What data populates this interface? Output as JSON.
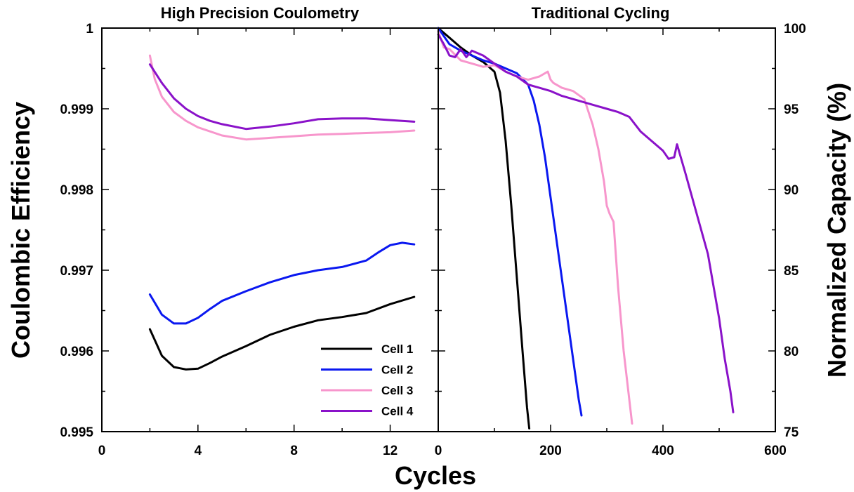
{
  "chart_data": [
    {
      "type": "line",
      "title": "High Precision Coulometry",
      "xlabel": "Cycles",
      "ylabel": "Coulombic Efficiency",
      "xlim": [
        0,
        14
      ],
      "ylim": [
        0.995,
        1.0
      ],
      "x_ticks": [
        "0",
        "4",
        "8",
        "12"
      ],
      "y_ticks": [
        "0.995",
        "0.996",
        "0.997",
        "0.998",
        "0.999",
        "1"
      ],
      "legend_position": "bottom-right",
      "series": [
        {
          "name": "Cell 1",
          "color": "#000000",
          "x": [
            2,
            2.5,
            3,
            3.5,
            4,
            4.5,
            5,
            6,
            7,
            8,
            9,
            10,
            11,
            12,
            13
          ],
          "y": [
            0.99627,
            0.99594,
            0.9958,
            0.99577,
            0.99578,
            0.99585,
            0.99593,
            0.99606,
            0.9962,
            0.9963,
            0.99638,
            0.99642,
            0.99647,
            0.99658,
            0.99667
          ]
        },
        {
          "name": "Cell 2",
          "color": "#0a18f0",
          "x": [
            2,
            2.5,
            3,
            3.5,
            4,
            4.5,
            5,
            6,
            7,
            8,
            9,
            10,
            11,
            11.5,
            12,
            12.5,
            13
          ],
          "y": [
            0.9967,
            0.99645,
            0.99634,
            0.99634,
            0.99641,
            0.99652,
            0.99662,
            0.99674,
            0.99685,
            0.99694,
            0.997,
            0.99704,
            0.99712,
            0.99722,
            0.99731,
            0.99734,
            0.99732
          ]
        },
        {
          "name": "Cell 3",
          "color": "#f796cc",
          "x": [
            2,
            2.2,
            2.5,
            3,
            3.5,
            4,
            5,
            6,
            7,
            8,
            9,
            10,
            11,
            12,
            13
          ],
          "y": [
            0.99966,
            0.99937,
            0.99915,
            0.99896,
            0.99885,
            0.99877,
            0.99867,
            0.99862,
            0.99864,
            0.99866,
            0.99868,
            0.99869,
            0.9987,
            0.99871,
            0.99873
          ]
        },
        {
          "name": "Cell 4",
          "color": "#8a12c9",
          "x": [
            2,
            2.5,
            3,
            3.5,
            4,
            4.5,
            5,
            6,
            7,
            8,
            9,
            10,
            11,
            12,
            13
          ],
          "y": [
            0.99955,
            0.99932,
            0.99913,
            0.999,
            0.99891,
            0.99885,
            0.99881,
            0.99875,
            0.99878,
            0.99882,
            0.99887,
            0.99888,
            0.99888,
            0.99886,
            0.99884
          ]
        }
      ]
    },
    {
      "type": "line",
      "title": "Traditional Cycling",
      "xlabel": "Cycles",
      "ylabel": "Normalized Capacity (%)",
      "xlim": [
        0,
        600
      ],
      "ylim": [
        75,
        100
      ],
      "x_ticks": [
        "0",
        "200",
        "400",
        "600"
      ],
      "y_ticks": [
        "75",
        "80",
        "85",
        "90",
        "95",
        "100"
      ],
      "series": [
        {
          "name": "Cell 1",
          "color": "#000000",
          "x": [
            0,
            20,
            40,
            60,
            80,
            100,
            110,
            120,
            130,
            140,
            150,
            158,
            162
          ],
          "y": [
            100,
            99.4,
            98.8,
            98.3,
            97.9,
            97.3,
            96.0,
            93.0,
            89.0,
            84.5,
            80.0,
            76.5,
            75.2
          ]
        },
        {
          "name": "Cell 2",
          "color": "#0a18f0",
          "x": [
            0,
            20,
            40,
            60,
            80,
            100,
            120,
            140,
            160,
            170,
            180,
            190,
            200,
            210,
            220,
            230,
            240,
            250,
            255
          ],
          "y": [
            100,
            99.0,
            98.6,
            98.3,
            98.0,
            97.8,
            97.5,
            97.2,
            96.5,
            95.5,
            94.0,
            92.0,
            89.5,
            87.0,
            84.5,
            82.0,
            79.5,
            77.0,
            76.0
          ]
        },
        {
          "name": "Cell 3",
          "color": "#f796cc",
          "x": [
            0,
            10,
            20,
            40,
            60,
            80,
            100,
            120,
            140,
            160,
            180,
            195,
            200,
            205,
            220,
            240,
            260,
            275,
            285,
            295,
            300,
            305,
            312,
            320,
            330,
            340,
            345
          ],
          "y": [
            99.8,
            98.8,
            98.7,
            98.0,
            97.8,
            97.6,
            97.7,
            97.3,
            97.0,
            96.8,
            97.0,
            97.3,
            96.8,
            96.6,
            96.3,
            96.1,
            95.6,
            94.0,
            92.5,
            90.5,
            89.0,
            88.5,
            88.0,
            84.0,
            80.0,
            77.0,
            75.5
          ]
        },
        {
          "name": "Cell 4",
          "color": "#8a12c9",
          "x": [
            0,
            10,
            20,
            30,
            40,
            50,
            60,
            80,
            100,
            120,
            140,
            160,
            180,
            200,
            220,
            240,
            260,
            280,
            300,
            320,
            340,
            360,
            380,
            400,
            410,
            420,
            425,
            430,
            440,
            460,
            480,
            500,
            510,
            520,
            525
          ],
          "y": [
            99.6,
            99.0,
            98.3,
            98.2,
            98.7,
            98.2,
            98.6,
            98.3,
            97.8,
            97.3,
            97.0,
            96.5,
            96.3,
            96.1,
            95.8,
            95.6,
            95.4,
            95.2,
            95.0,
            94.8,
            94.5,
            93.6,
            93.0,
            92.4,
            91.9,
            92.0,
            92.8,
            92.2,
            91.0,
            88.5,
            86.0,
            82.0,
            79.5,
            77.5,
            76.2
          ]
        }
      ]
    }
  ]
}
